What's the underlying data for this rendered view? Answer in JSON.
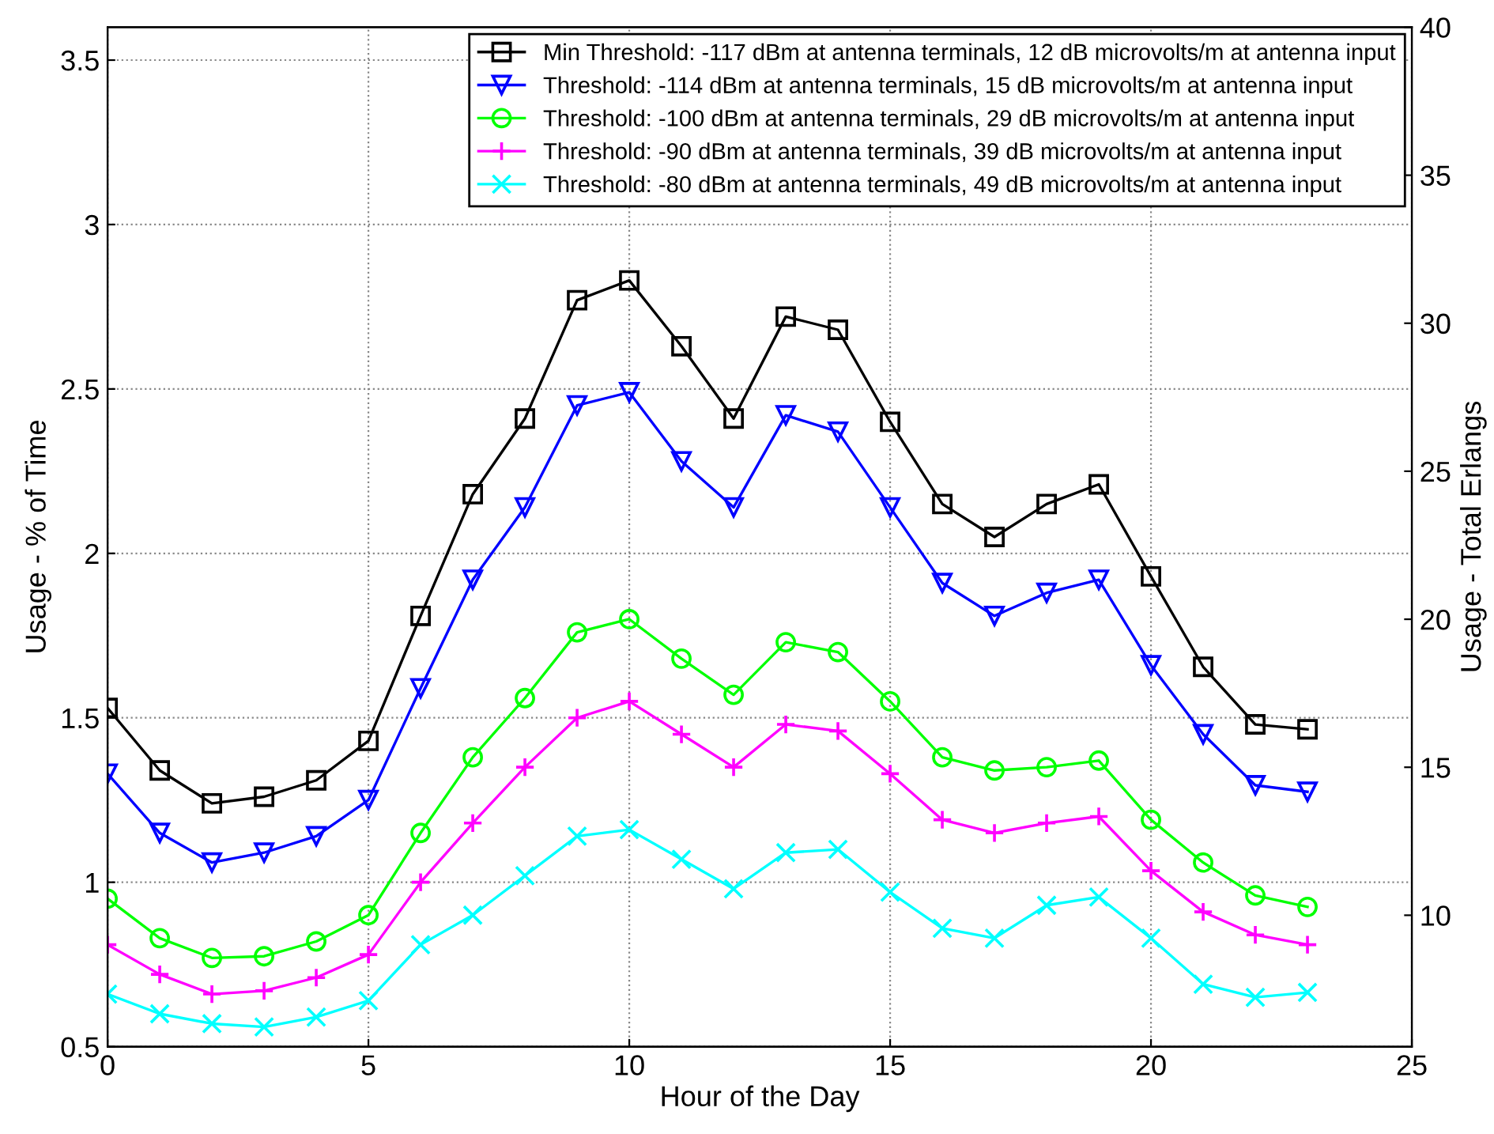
{
  "chart_data": {
    "type": "line",
    "xlabel": "Hour of the Day",
    "ylabel": "Usage - % of Time",
    "y2label": "Usage - Total Erlangs",
    "x": [
      0,
      1,
      2,
      3,
      4,
      5,
      6,
      7,
      8,
      9,
      10,
      11,
      12,
      13,
      14,
      15,
      16,
      17,
      18,
      19,
      20,
      21,
      22,
      23
    ],
    "xlim": [
      0,
      25
    ],
    "xticks": [
      0,
      5,
      10,
      15,
      20,
      25
    ],
    "ylim": [
      0.5,
      3.6
    ],
    "yticks": [
      0.5,
      1,
      1.5,
      2,
      2.5,
      3,
      3.5
    ],
    "y2lim": [
      5.56,
      40
    ],
    "y2ticks": [
      10,
      15,
      20,
      25,
      30,
      35,
      40
    ],
    "grid": true,
    "legend": "top right",
    "line_style": "solid",
    "series": [
      {
        "name": "Min Threshold: -117 dBm at antenna terminals, 12 dB microvolts/m at antenna input",
        "color": "#000000",
        "marker": "square",
        "values": [
          1.53,
          1.34,
          1.24,
          1.26,
          1.31,
          1.43,
          1.81,
          2.18,
          2.41,
          2.77,
          2.83,
          2.63,
          2.41,
          2.72,
          2.68,
          2.4,
          2.15,
          2.05,
          2.15,
          2.21,
          1.93,
          1.655,
          1.48,
          1.465
        ]
      },
      {
        "name": "Threshold: -114 dBm at antenna terminals, 15 dB microvolts/m at antenna input",
        "color": "#0000ff",
        "marker": "triangle",
        "values": [
          1.33,
          1.15,
          1.06,
          1.09,
          1.14,
          1.25,
          1.59,
          1.92,
          2.14,
          2.45,
          2.49,
          2.28,
          2.14,
          2.42,
          2.37,
          2.14,
          1.91,
          1.81,
          1.88,
          1.92,
          1.66,
          1.45,
          1.295,
          1.275
        ]
      },
      {
        "name": "Threshold: -100 dBm at antenna terminals, 29 dB microvolts/m at antenna input",
        "color": "#00ff00",
        "marker": "circle",
        "values": [
          0.95,
          0.83,
          0.77,
          0.775,
          0.82,
          0.9,
          1.15,
          1.38,
          1.56,
          1.76,
          1.8,
          1.68,
          1.57,
          1.73,
          1.7,
          1.55,
          1.38,
          1.34,
          1.35,
          1.37,
          1.19,
          1.06,
          0.96,
          0.925
        ]
      },
      {
        "name": "Threshold: -90 dBm at antenna terminals, 39 dB microvolts/m at antenna input",
        "color": "#ff00ff",
        "marker": "plus",
        "values": [
          0.81,
          0.72,
          0.66,
          0.67,
          0.71,
          0.78,
          1.0,
          1.18,
          1.35,
          1.5,
          1.55,
          1.45,
          1.35,
          1.48,
          1.46,
          1.33,
          1.19,
          1.15,
          1.18,
          1.2,
          1.035,
          0.91,
          0.84,
          0.81
        ]
      },
      {
        "name": "Threshold: -80 dBm at antenna terminals, 49 dB microvolts/m at antenna input",
        "color": "#00ffff",
        "marker": "cross",
        "values": [
          0.66,
          0.6,
          0.57,
          0.56,
          0.59,
          0.64,
          0.81,
          0.9,
          1.02,
          1.14,
          1.16,
          1.07,
          0.98,
          1.09,
          1.1,
          0.97,
          0.86,
          0.83,
          0.93,
          0.955,
          0.83,
          0.69,
          0.65,
          0.665
        ]
      }
    ]
  }
}
